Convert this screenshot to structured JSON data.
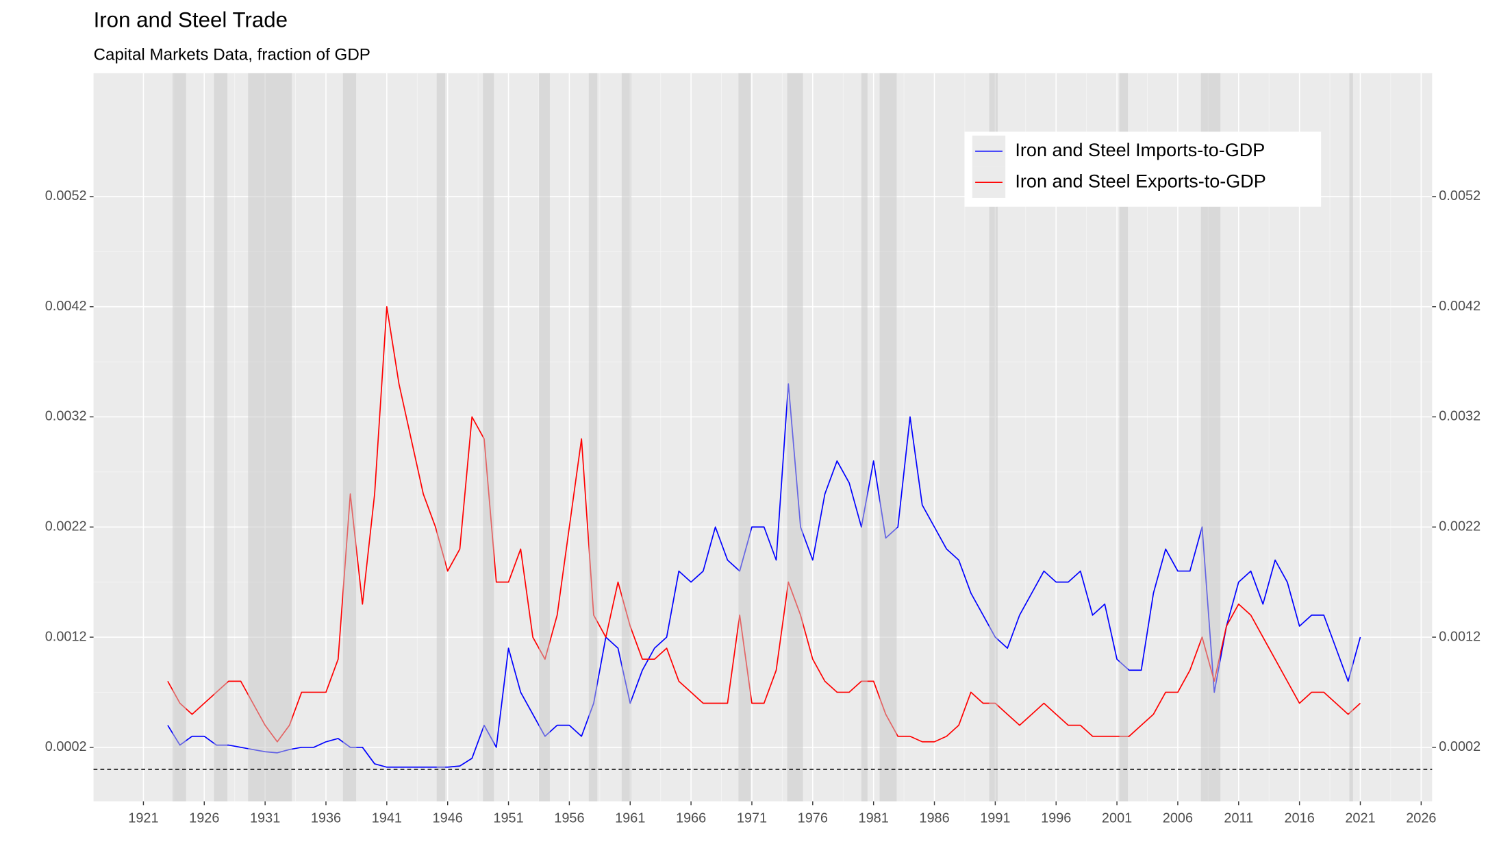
{
  "chart_data": {
    "type": "line",
    "title": "Iron and Steel Trade",
    "subtitle": "Capital Markets Data, fraction of GDP",
    "x": [
      1923,
      1924,
      1925,
      1926,
      1927,
      1928,
      1929,
      1930,
      1931,
      1932,
      1933,
      1934,
      1935,
      1936,
      1937,
      1938,
      1939,
      1940,
      1941,
      1942,
      1943,
      1944,
      1945,
      1946,
      1947,
      1948,
      1949,
      1950,
      1951,
      1952,
      1953,
      1954,
      1955,
      1956,
      1957,
      1958,
      1959,
      1960,
      1961,
      1962,
      1963,
      1964,
      1965,
      1966,
      1967,
      1968,
      1969,
      1970,
      1971,
      1972,
      1973,
      1974,
      1975,
      1976,
      1977,
      1978,
      1979,
      1980,
      1981,
      1982,
      1983,
      1984,
      1985,
      1986,
      1987,
      1988,
      1989,
      1990,
      1991,
      1992,
      1993,
      1994,
      1995,
      1996,
      1997,
      1998,
      1999,
      2000,
      2001,
      2002,
      2003,
      2004,
      2005,
      2006,
      2007,
      2008,
      2009,
      2010,
      2011,
      2012,
      2013,
      2014,
      2015,
      2016,
      2017,
      2018,
      2019,
      2020,
      2021
    ],
    "series": [
      {
        "name": "Iron and Steel Imports-to-GDP",
        "color": "#0000ff",
        "values": [
          0.0004,
          0.00022,
          0.0003,
          0.0003,
          0.00022,
          0.00022,
          0.0002,
          0.00018,
          0.00016,
          0.00015,
          0.00018,
          0.0002,
          0.0002,
          0.00025,
          0.00028,
          0.0002,
          0.0002,
          5e-05,
          2e-05,
          2e-05,
          2e-05,
          2e-05,
          2e-05,
          2e-05,
          3e-05,
          0.0001,
          0.0004,
          0.0002,
          0.0011,
          0.0007,
          0.0005,
          0.0003,
          0.0004,
          0.0004,
          0.0003,
          0.0006,
          0.0012,
          0.0011,
          0.0006,
          0.0009,
          0.0011,
          0.0012,
          0.0018,
          0.0017,
          0.0018,
          0.0022,
          0.0019,
          0.0018,
          0.0022,
          0.0022,
          0.0019,
          0.0035,
          0.0022,
          0.0019,
          0.0025,
          0.0028,
          0.0026,
          0.0022,
          0.0028,
          0.0021,
          0.0022,
          0.0032,
          0.0024,
          0.0022,
          0.002,
          0.0019,
          0.0016,
          0.0014,
          0.0012,
          0.0011,
          0.0014,
          0.0016,
          0.0018,
          0.0017,
          0.0017,
          0.0018,
          0.0014,
          0.0015,
          0.001,
          0.0009,
          0.0009,
          0.0016,
          0.002,
          0.0018,
          0.0018,
          0.0022,
          0.0007,
          0.0013,
          0.0017,
          0.0018,
          0.0015,
          0.0019,
          0.0017,
          0.0013,
          0.0014,
          0.0014,
          0.0011,
          0.0008,
          0.0012
        ]
      },
      {
        "name": "Iron and Steel Exports-to-GDP",
        "color": "#ff0000",
        "values": [
          0.0008,
          0.0006,
          0.0005,
          0.0006,
          0.0007,
          0.0008,
          0.0008,
          0.0006,
          0.0004,
          0.00025,
          0.0004,
          0.0007,
          0.0007,
          0.0007,
          0.001,
          0.0025,
          0.0015,
          0.0025,
          0.0042,
          0.0035,
          0.003,
          0.0025,
          0.0022,
          0.0018,
          0.002,
          0.0032,
          0.003,
          0.0017,
          0.0017,
          0.002,
          0.0012,
          0.001,
          0.0014,
          0.0022,
          0.003,
          0.0014,
          0.0012,
          0.0017,
          0.0013,
          0.001,
          0.001,
          0.0011,
          0.0008,
          0.0007,
          0.0006,
          0.0006,
          0.0006,
          0.0014,
          0.0006,
          0.0006,
          0.0009,
          0.0017,
          0.0014,
          0.001,
          0.0008,
          0.0007,
          0.0007,
          0.0008,
          0.0008,
          0.0005,
          0.0003,
          0.0003,
          0.00025,
          0.00025,
          0.0003,
          0.0004,
          0.0007,
          0.0006,
          0.0006,
          0.0005,
          0.0004,
          0.0005,
          0.0006,
          0.0005,
          0.0004,
          0.0004,
          0.0003,
          0.0003,
          0.0003,
          0.0003,
          0.0004,
          0.0005,
          0.0007,
          0.0007,
          0.0009,
          0.0012,
          0.0008,
          0.0013,
          0.0015,
          0.0014,
          0.0012,
          0.001,
          0.0008,
          0.0006,
          0.0007,
          0.0007,
          0.0006,
          0.0005,
          0.0006
        ]
      }
    ],
    "recessions": [
      [
        1923.4,
        1924.5
      ],
      [
        1926.8,
        1927.9
      ],
      [
        1929.6,
        1933.2
      ],
      [
        1937.4,
        1938.5
      ],
      [
        1945.1,
        1945.8
      ],
      [
        1948.9,
        1949.8
      ],
      [
        1953.5,
        1954.4
      ],
      [
        1957.6,
        1958.3
      ],
      [
        1960.3,
        1961.1
      ],
      [
        1969.9,
        1970.9
      ],
      [
        1973.9,
        1975.2
      ],
      [
        1980.0,
        1980.5
      ],
      [
        1981.5,
        1982.9
      ],
      [
        1990.5,
        1991.2
      ],
      [
        2001.2,
        2001.9
      ],
      [
        2007.9,
        2009.5
      ],
      [
        2020.1,
        2020.4
      ]
    ],
    "hline": 0,
    "xlim": [
      1916.9,
      2026.9
    ],
    "ylim": [
      -0.00029,
      0.00632
    ],
    "xticks": [
      1921,
      1926,
      1931,
      1936,
      1941,
      1946,
      1951,
      1956,
      1961,
      1966,
      1971,
      1976,
      1981,
      1986,
      1991,
      1996,
      2001,
      2006,
      2011,
      2016,
      2021,
      2026
    ],
    "yticks": [
      0.0002,
      0.0012,
      0.0022,
      0.0032,
      0.0042,
      0.0052
    ],
    "secondary_y_axis_mirrored": true,
    "grid": true,
    "legend_position": "top-right"
  }
}
